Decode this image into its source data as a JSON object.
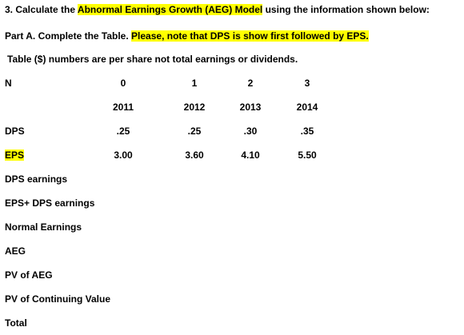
{
  "question": {
    "prefix": "3. Calculate the ",
    "highlight": "Abnormal Earnings Growth (AEG) Model",
    "suffix": " using the information shown below:"
  },
  "part_a": {
    "prefix": "Part A. Complete the Table. ",
    "highlight": "Please, note that DPS is show first followed by EPS."
  },
  "note": "Table ($) numbers are per share not total earnings or dividends.",
  "table": {
    "n_label": "N",
    "periods": [
      "0",
      "1",
      "2",
      "3"
    ],
    "years": [
      "2011",
      "2012",
      "2013",
      "2014"
    ],
    "rows": [
      {
        "label": "DPS",
        "values": [
          ".25",
          ".25",
          ".30",
          ".35"
        ],
        "highlight": false
      },
      {
        "label": "EPS",
        "values": [
          "3.00",
          "3.60",
          "4.10",
          "5.50"
        ],
        "highlight": true
      }
    ],
    "empty_rows": [
      "DPS earnings",
      "EPS+ DPS earnings",
      "Normal Earnings",
      "AEG",
      "PV of AEG",
      "PV of Continuing Value",
      "Total"
    ]
  },
  "colors": {
    "highlight": "#ffff00",
    "text": "#000000"
  }
}
